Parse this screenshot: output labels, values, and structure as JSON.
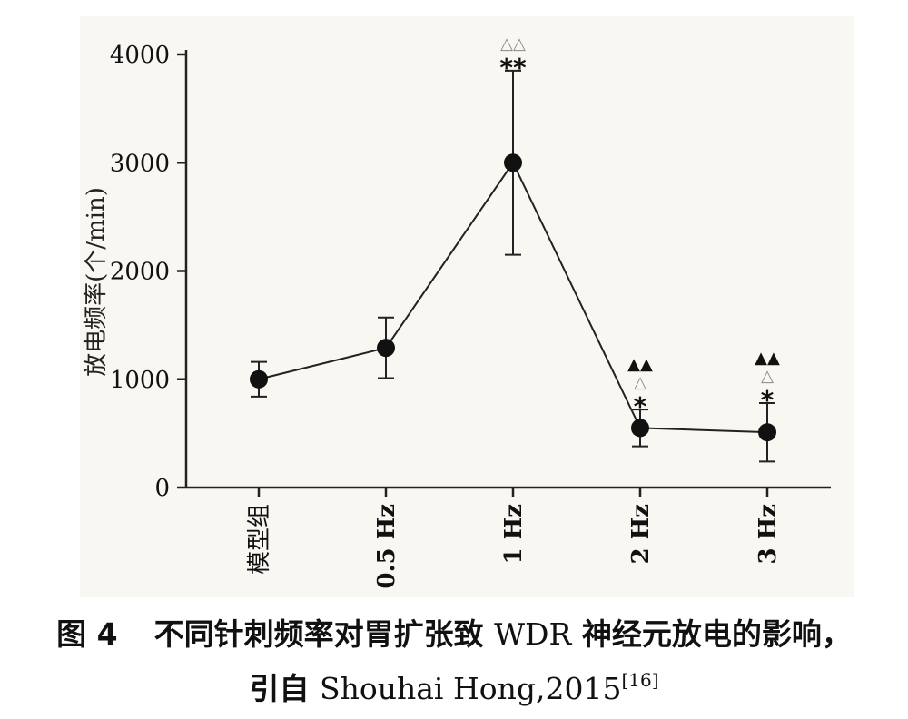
{
  "chart_data": {
    "type": "line",
    "ylabel": "放电频率(个/min)",
    "xlabel": "",
    "ylim": [
      0,
      4000
    ],
    "yticks": [
      0,
      1000,
      2000,
      3000,
      4000
    ],
    "categories": [
      "模型组",
      "0.5 Hz",
      "1 Hz",
      "2 Hz",
      "3 Hz"
    ],
    "series": [
      {
        "values": [
          1000,
          1290,
          3000,
          550,
          510
        ],
        "error": [
          160,
          280,
          850,
          170,
          270
        ]
      }
    ],
    "annotations": [
      {
        "category": "1 Hz",
        "rows": [
          "△△",
          "**"
        ]
      },
      {
        "category": "2 Hz",
        "rows": [
          "▲▲",
          "△",
          "*"
        ]
      },
      {
        "category": "3 Hz",
        "rows": [
          "▲▲",
          "△",
          "*"
        ]
      }
    ],
    "grid": false,
    "legend": "none"
  },
  "caption": {
    "figure_label": "图 4",
    "title_cn_1": "不同针刺频率对胃扩张致",
    "title_latin": "WDR",
    "title_cn_2": "神经元放电的影响，",
    "cite_prefix": "引自",
    "cite_source": "Shouhai Hong,2015",
    "cite_ref": "[16]"
  }
}
